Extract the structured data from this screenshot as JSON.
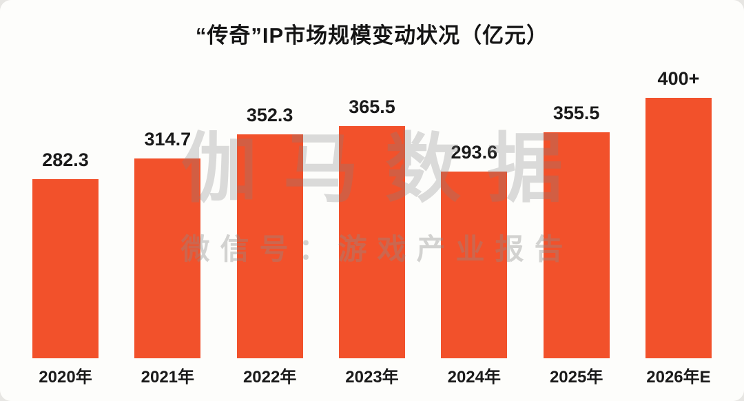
{
  "chart_data": {
    "type": "bar",
    "title": "“传奇”IP市场规模变动状况（亿元）",
    "categories": [
      "2020年",
      "2021年",
      "2022年",
      "2023年",
      "2024年",
      "2025年",
      "2026年E"
    ],
    "values": [
      282.3,
      314.7,
      352.3,
      365.5,
      293.6,
      355.5,
      410
    ],
    "value_labels": [
      "282.3",
      "314.7",
      "352.3",
      "365.5",
      "293.6",
      "355.5",
      "400+"
    ],
    "xlabel": "",
    "ylabel": "",
    "ylim": [
      0,
      450
    ],
    "grid": false,
    "legend": false,
    "bar_color": "#F2512B"
  },
  "watermark": {
    "line1": "伽马数据",
    "line2": "微信号：游戏产业报告"
  }
}
